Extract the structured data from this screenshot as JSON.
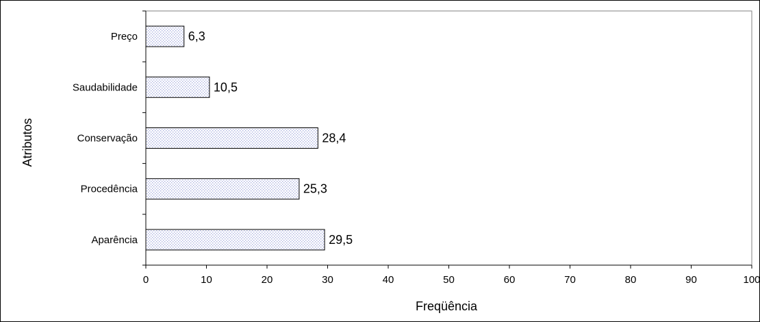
{
  "chart_data": {
    "type": "bar",
    "orientation": "horizontal",
    "categories": [
      "Preço",
      "Saudabilidade",
      "Conservação",
      "Procedência",
      "Aparência"
    ],
    "values": [
      6.3,
      10.5,
      28.4,
      25.3,
      29.5
    ],
    "value_labels": [
      "6,3",
      "10,5",
      "28,4",
      "25,3",
      "29,5"
    ],
    "title": "",
    "xlabel": "Freqüência",
    "ylabel": "Atributos",
    "xlim": [
      0,
      100
    ],
    "x_ticks": [
      0,
      10,
      20,
      30,
      40,
      50,
      60,
      70,
      80,
      90,
      100
    ],
    "grid": false,
    "legend": "none",
    "bar_fill": "dotted-pattern",
    "colors": {
      "bar_fill_dot": "#aab0e0",
      "bar_stroke": "#000000",
      "frame": "#000000",
      "background": "#ffffff"
    }
  }
}
